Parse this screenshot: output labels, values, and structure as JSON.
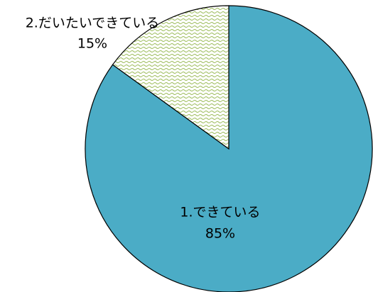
{
  "chart_data": {
    "type": "pie",
    "categories": [
      "1.できている",
      "2.だいたいできている"
    ],
    "values": [
      85,
      15
    ],
    "value_labels": [
      "85%",
      "15%"
    ],
    "colors": [
      "#4bacc6",
      "#9bbb59"
    ]
  }
}
